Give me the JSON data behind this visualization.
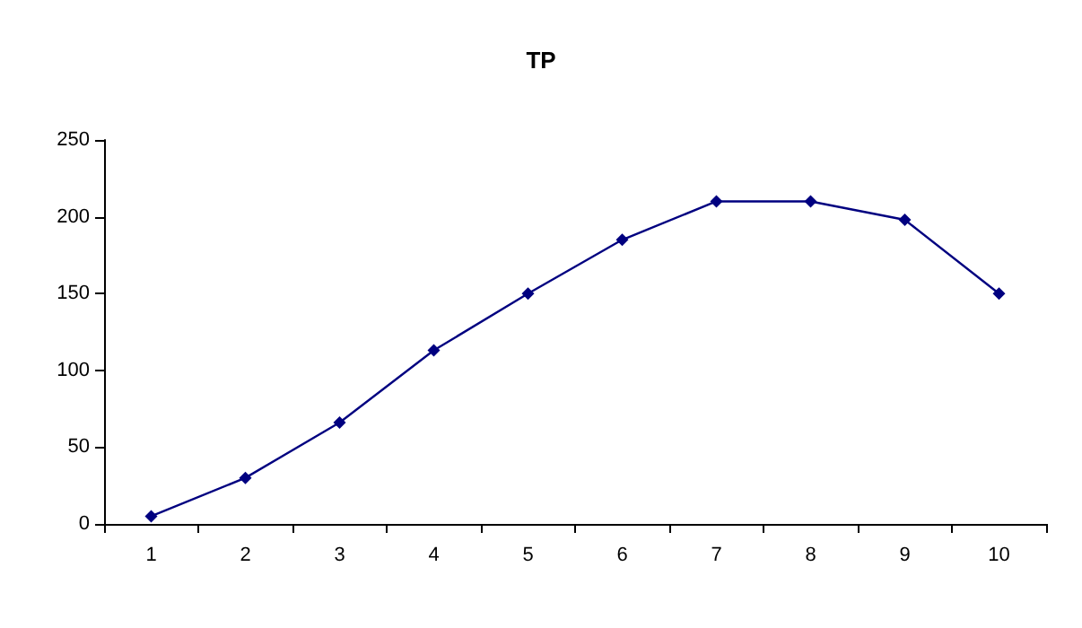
{
  "chart_data": {
    "type": "line",
    "title": "TP",
    "categories": [
      "1",
      "2",
      "3",
      "4",
      "5",
      "6",
      "7",
      "8",
      "9",
      "10"
    ],
    "series": [
      {
        "color": "#000080",
        "values": [
          5,
          30,
          66,
          113,
          150,
          185,
          210,
          210,
          198,
          150
        ]
      }
    ],
    "ylim": [
      0,
      250
    ],
    "yticks": [
      0,
      50,
      100,
      150,
      200,
      250
    ],
    "grid": false,
    "marker": "diamond",
    "line_style": "solid"
  }
}
